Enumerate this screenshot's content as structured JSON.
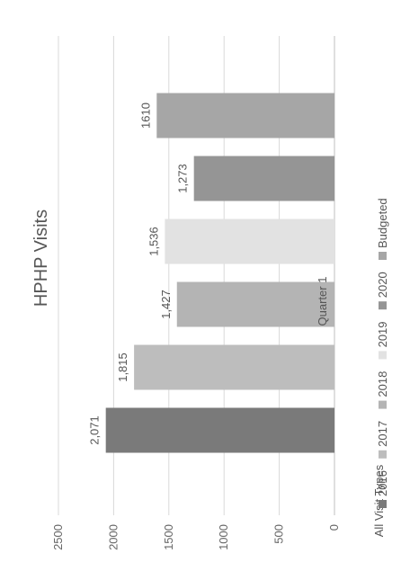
{
  "chart_data": {
    "type": "bar",
    "title": "HPHP Visits",
    "ylabel": "All Visit Types",
    "ylim": [
      0,
      2500
    ],
    "yticks": [
      0,
      500,
      1000,
      1500,
      2000,
      2500
    ],
    "grid": true,
    "legend_position": "bottom",
    "categories": [
      "Quarter 1"
    ],
    "series": [
      {
        "name": "2016",
        "values": [
          2071
        ],
        "label": "2,071",
        "color": "#7a7a7a"
      },
      {
        "name": "2017",
        "values": [
          1815
        ],
        "label": "1,815",
        "color": "#bdbdbd"
      },
      {
        "name": "2018",
        "values": [
          1427
        ],
        "label": "1,427",
        "color": "#b4b4b4"
      },
      {
        "name": "2019",
        "values": [
          1536
        ],
        "label": "1,536",
        "color": "#e2e2e2"
      },
      {
        "name": "2020",
        "values": [
          1273
        ],
        "label": "1,273",
        "color": "#959595"
      },
      {
        "name": "Budgeted",
        "values": [
          1610
        ],
        "label": "1610",
        "color": "#a6a6a6"
      }
    ]
  }
}
